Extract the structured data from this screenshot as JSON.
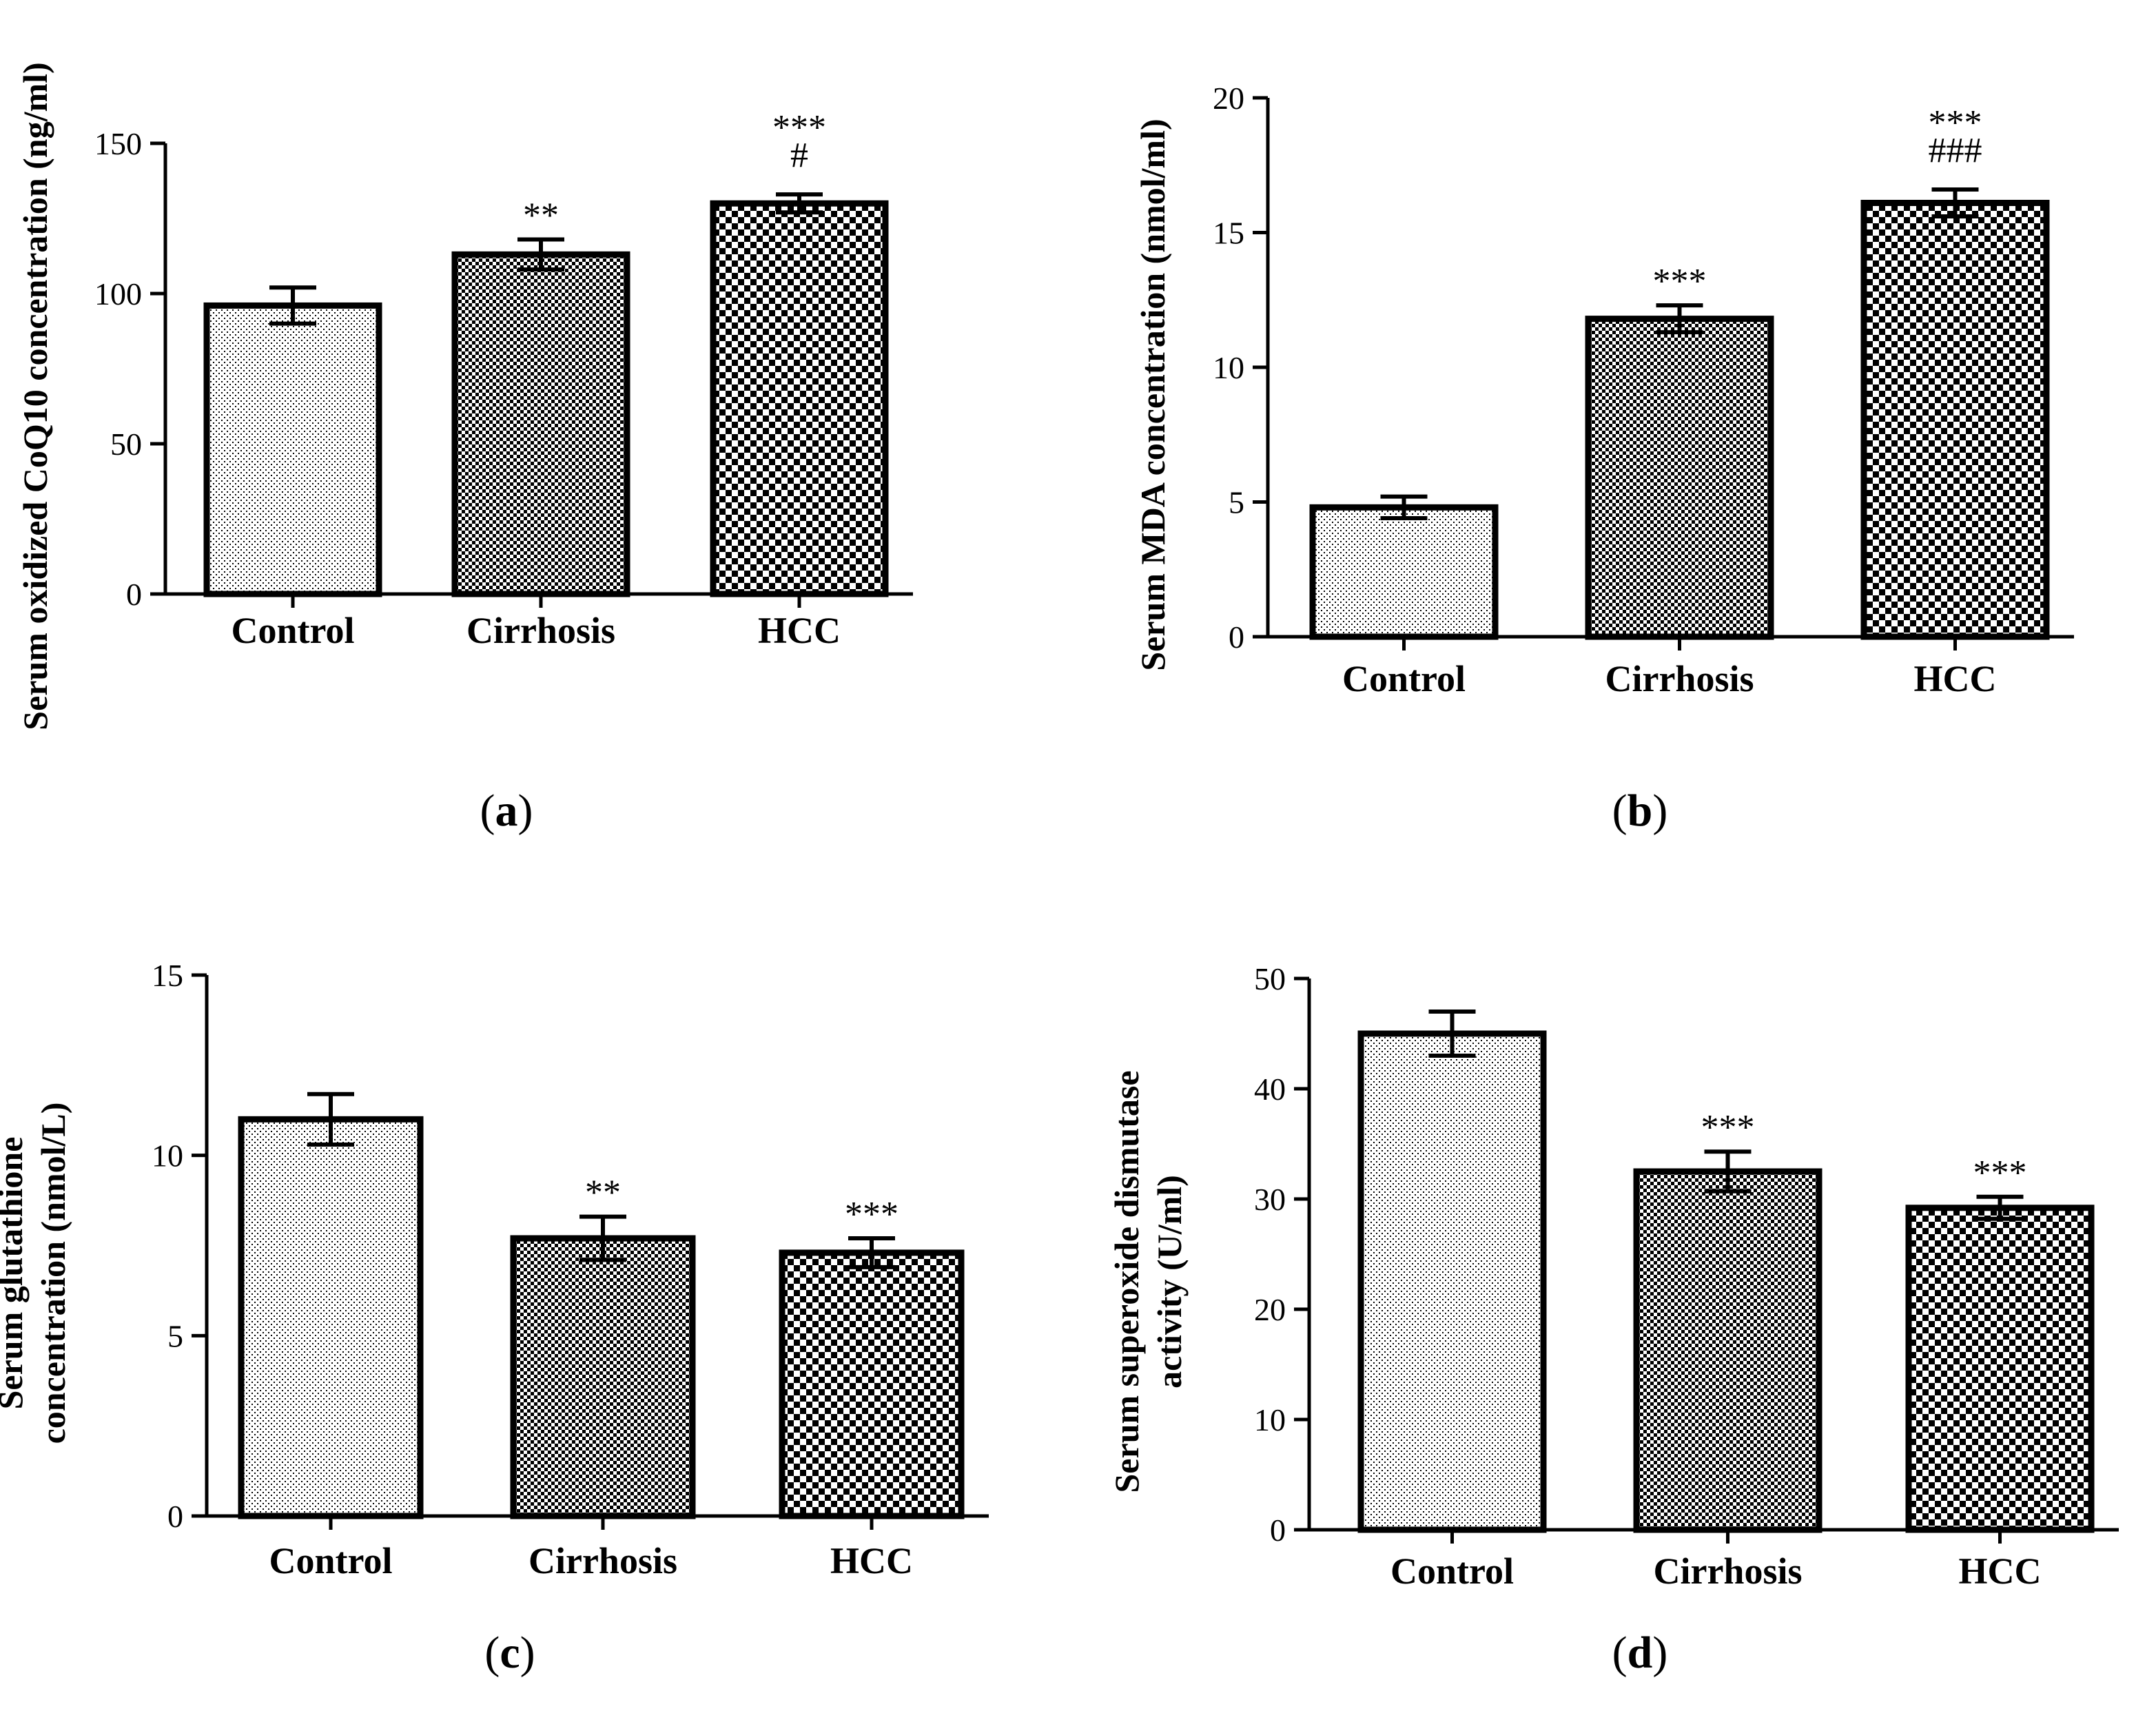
{
  "figure": {
    "patterns": [
      "fine-dots",
      "medium-check",
      "coarse-check"
    ]
  },
  "chart_data": [
    {
      "id": "a",
      "type": "bar",
      "panel_label": "a",
      "categories": [
        "Control",
        "Cirrhosis",
        "HCC"
      ],
      "values": [
        96,
        113,
        130
      ],
      "errors": [
        6,
        5,
        3
      ],
      "significance": [
        [],
        [
          "**"
        ],
        [
          "***",
          "#"
        ]
      ],
      "ylabel": "Serum oxidized CoQ10 concentration (ng/ml)",
      "ylim": [
        0,
        150
      ],
      "yticks": [
        0,
        50,
        100,
        150
      ]
    },
    {
      "id": "b",
      "type": "bar",
      "panel_label": "b",
      "categories": [
        "Control",
        "Cirrhosis",
        "HCC"
      ],
      "values": [
        4.8,
        11.8,
        16.1
      ],
      "errors": [
        0.4,
        0.5,
        0.5
      ],
      "significance": [
        [],
        [
          "***"
        ],
        [
          "***",
          "###"
        ]
      ],
      "ylabel": "Serum MDA concentration (nmol/ml)",
      "ylim": [
        0,
        20
      ],
      "yticks": [
        0,
        5,
        10,
        15,
        20
      ]
    },
    {
      "id": "c",
      "type": "bar",
      "panel_label": "c",
      "categories": [
        "Control",
        "Cirrhosis",
        "HCC"
      ],
      "values": [
        11.0,
        7.7,
        7.3
      ],
      "errors": [
        0.7,
        0.6,
        0.4
      ],
      "significance": [
        [],
        [
          "**"
        ],
        [
          "***"
        ]
      ],
      "ylabel": [
        "Serum glutathione",
        "concentration (nmol/L)"
      ],
      "ylim": [
        0,
        15
      ],
      "yticks": [
        0,
        5,
        10,
        15
      ]
    },
    {
      "id": "d",
      "type": "bar",
      "panel_label": "d",
      "categories": [
        "Control",
        "Cirrhosis",
        "HCC"
      ],
      "values": [
        45,
        32.5,
        29.2
      ],
      "errors": [
        2,
        1.8,
        1.0
      ],
      "significance": [
        [],
        [
          "***"
        ],
        [
          "***"
        ]
      ],
      "ylabel": [
        "Serum superoxide dismutase",
        "activity (U/ml)"
      ],
      "ylim": [
        0,
        50
      ],
      "yticks": [
        0,
        10,
        20,
        30,
        40,
        50
      ]
    }
  ]
}
